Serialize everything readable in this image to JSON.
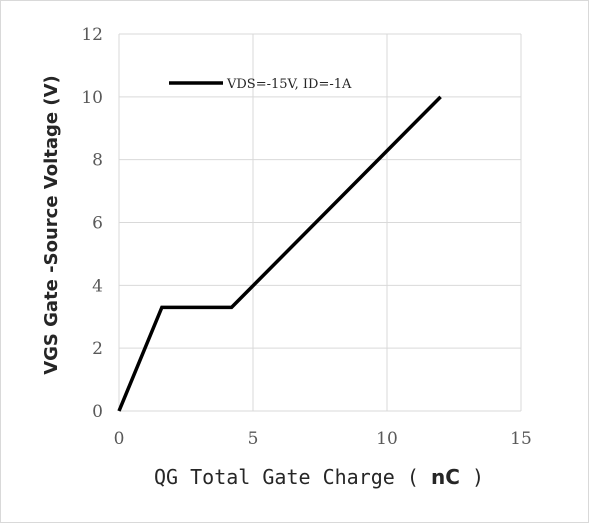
{
  "chart_data": {
    "type": "line",
    "title": "",
    "xlabel_main": "QG Total Gate Charge",
    "xlabel_unit_open": "(",
    "xlabel_unit": "nC",
    "xlabel_unit_close": ")",
    "ylabel": "VGS Gate -Source Voltage (V)",
    "xlim": [
      0,
      15
    ],
    "ylim": [
      0,
      12
    ],
    "x_ticks": [
      0,
      5,
      10,
      15
    ],
    "y_ticks": [
      0,
      2,
      4,
      6,
      8,
      10,
      12
    ],
    "grid": true,
    "legend_position": "top-left",
    "series": [
      {
        "name": "VDS=-15V, ID=-1A",
        "color": "#000000",
        "x": [
          0,
          1.6,
          4.2,
          12.0
        ],
        "y": [
          0,
          3.3,
          3.3,
          10.0
        ]
      }
    ]
  }
}
